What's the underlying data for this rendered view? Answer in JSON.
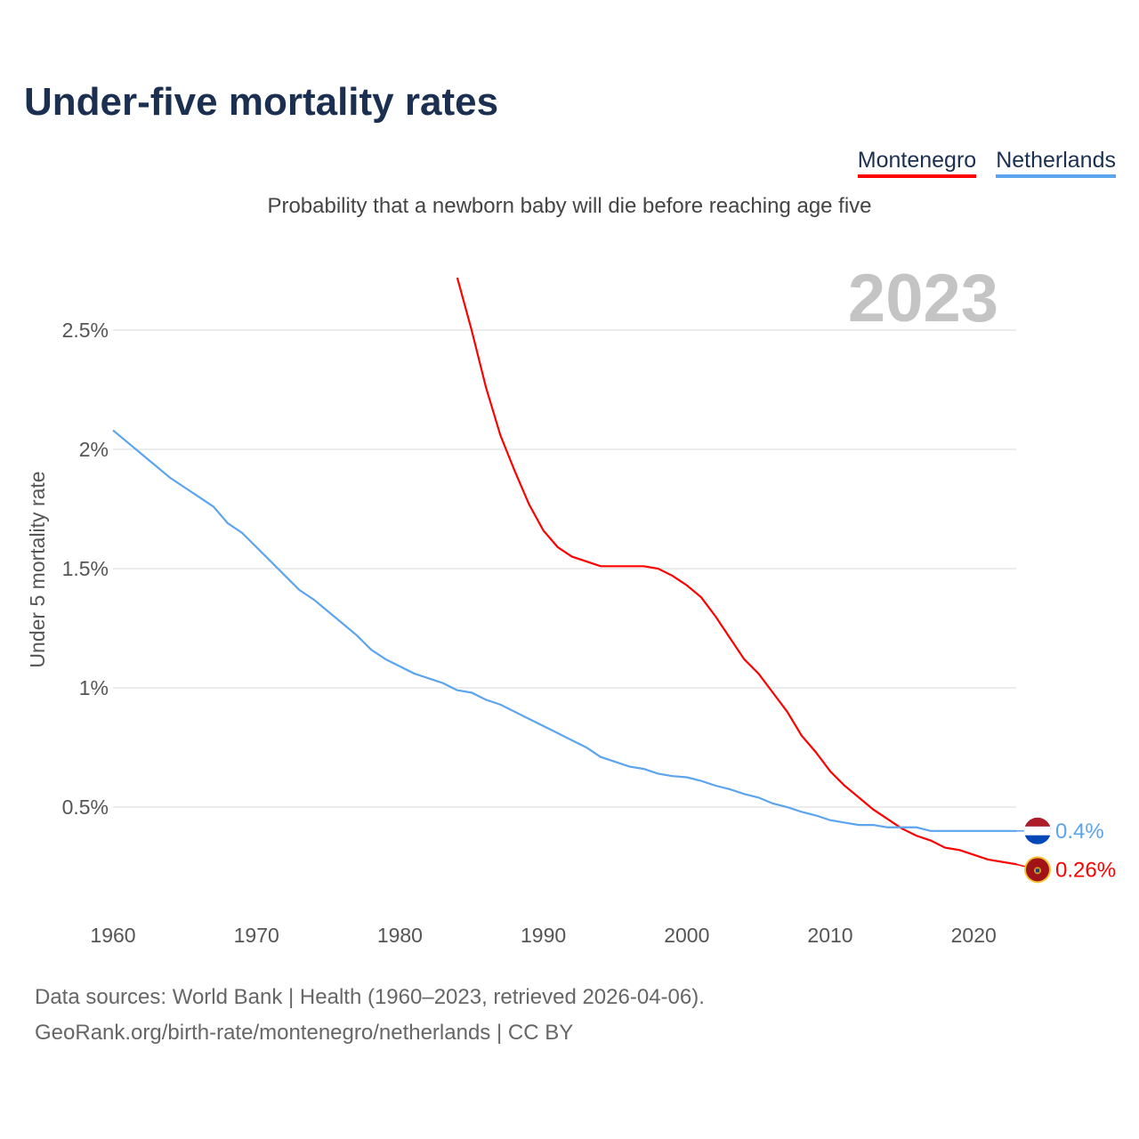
{
  "title": "Under-five mortality rates",
  "subtitle": "Probability that a newborn baby will die before reaching age five",
  "legend": [
    "Montenegro",
    "Netherlands"
  ],
  "year_label": "2023",
  "source_line1": "Data sources: World Bank | Health (1960–2023, retrieved 2026-04-06).",
  "source_line2": "GeoRank.org/birth-rate/montenegro/netherlands | CC BY",
  "chart_data": {
    "type": "line",
    "title": "Under-five mortality rates",
    "xlabel": "",
    "ylabel": "Under 5 mortality rate",
    "xlim": [
      1960,
      2023
    ],
    "ylim": [
      0,
      2.8
    ],
    "x_ticks": [
      1960,
      1970,
      1980,
      1990,
      2000,
      2010,
      2020
    ],
    "y_ticks": [
      0.5,
      1,
      1.5,
      2,
      2.5
    ],
    "y_tick_labels": [
      "0.5%",
      "1%",
      "1.5%",
      "2%",
      "2.5%"
    ],
    "grid": true,
    "legend_position": "top-right",
    "series": [
      {
        "name": "Montenegro",
        "color": "#ff0000",
        "start_year": 1984,
        "end_label": "0.26%",
        "values": [
          2.72,
          2.5,
          2.26,
          2.06,
          1.91,
          1.77,
          1.66,
          1.59,
          1.55,
          1.53,
          1.51,
          1.51,
          1.51,
          1.51,
          1.5,
          1.47,
          1.43,
          1.38,
          1.3,
          1.21,
          1.12,
          1.06,
          0.98,
          0.9,
          0.8,
          0.73,
          0.65,
          0.59,
          0.54,
          0.49,
          0.45,
          0.41,
          0.38,
          0.36,
          0.33,
          0.32,
          0.3,
          0.28,
          0.27,
          0.26
        ]
      },
      {
        "name": "Netherlands",
        "color": "#5ba4ee",
        "start_year": 1960,
        "end_label": "0.4%",
        "values": [
          2.08,
          2.03,
          1.98,
          1.93,
          1.88,
          1.84,
          1.8,
          1.76,
          1.69,
          1.65,
          1.59,
          1.53,
          1.47,
          1.41,
          1.37,
          1.32,
          1.27,
          1.22,
          1.16,
          1.12,
          1.09,
          1.06,
          1.04,
          1.02,
          0.99,
          0.98,
          0.95,
          0.93,
          0.9,
          0.87,
          0.84,
          0.81,
          0.78,
          0.75,
          0.71,
          0.69,
          0.67,
          0.66,
          0.64,
          0.63,
          0.625,
          0.61,
          0.59,
          0.575,
          0.555,
          0.54,
          0.515,
          0.5,
          0.48,
          0.465,
          0.445,
          0.435,
          0.425,
          0.425,
          0.415,
          0.415,
          0.415,
          0.4,
          0.4,
          0.4,
          0.4,
          0.4,
          0.4,
          0.4
        ]
      }
    ]
  }
}
